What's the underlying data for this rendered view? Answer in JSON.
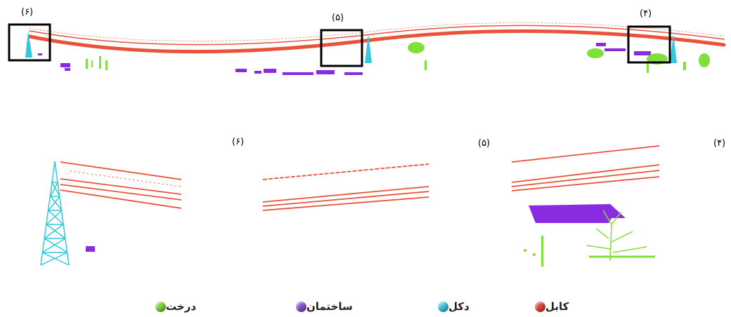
{
  "labels": {
    "top_left": "(۶)",
    "top_mid": "(۵)",
    "top_right": "(۴)",
    "panel_left": "(۶)",
    "panel_mid": "(۵)",
    "panel_right": "(۴)"
  },
  "legend": {
    "cable": "کابل",
    "tower": "دکل",
    "building": "ساختمان",
    "tree": "درخت"
  },
  "colors": {
    "cable": "#e8533a",
    "tower": "#33c8dc",
    "building": "#8a2be2",
    "tree": "#7fe03a"
  }
}
